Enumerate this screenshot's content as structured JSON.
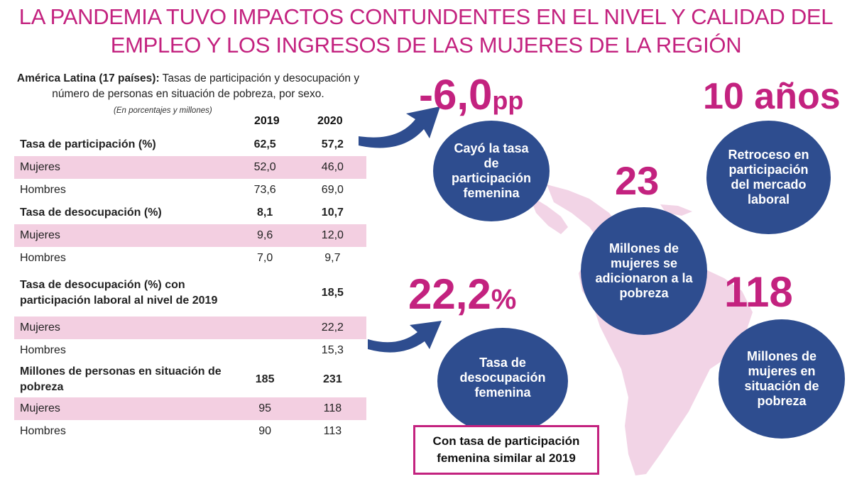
{
  "title": {
    "line1": "LA PANDEMIA TUVO IMPACTOS CONTUNDENTES EN EL NIVEL Y CALIDAD DEL",
    "line2": "EMPLEO Y LOS INGRESOS DE LAS MUJERES DE LA REGIÓN"
  },
  "table_caption": {
    "bold": "América Latina (17 países):",
    "rest": " Tasas de participación y desocupación y número de personas en situación de pobreza, por sexo.",
    "note": "(En porcentajes y millones)"
  },
  "columns": [
    "2019",
    "2020"
  ],
  "rows": [
    {
      "label": "Tasa de participación  (%)",
      "v2019": "62,5",
      "v2020": "57,2",
      "style": "bold"
    },
    {
      "label": "Mujeres",
      "v2019": "52,0",
      "v2020": "46,0",
      "style": "pink"
    },
    {
      "label": "Hombres",
      "v2019": "73,6",
      "v2020": "69,0",
      "style": ""
    },
    {
      "label": "Tasa de desocupación  (%)",
      "v2019": "8,1",
      "v2020": "10,7",
      "style": "bold"
    },
    {
      "label": "Mujeres",
      "v2019": "9,6",
      "v2020": "12,0",
      "style": "pink"
    },
    {
      "label": "Hombres",
      "v2019": "7,0",
      "v2020": "9,7",
      "style": ""
    },
    {
      "label": "Tasa de desocupación  (%) con participación  laboral al nivel de 2019",
      "v2019": "",
      "v2020": "18,5",
      "style": "bold tall"
    },
    {
      "label": "Mujeres",
      "v2019": "",
      "v2020": "22,2",
      "style": "pink"
    },
    {
      "label": "Hombres",
      "v2019": "",
      "v2020": "15,3",
      "style": ""
    },
    {
      "label": "Millones de personas  en situación de pobreza",
      "v2019": "185",
      "v2020": "231",
      "style": "bold tall"
    },
    {
      "label": "Mujeres",
      "v2019": "95",
      "v2020": "118",
      "style": "pink"
    },
    {
      "label": "Hombres",
      "v2019": "90",
      "v2020": "113",
      "style": ""
    }
  ],
  "stats": {
    "participacion": {
      "value": "-6,0",
      "unit": "pp",
      "text": "Cayó la tasa de participación femenina"
    },
    "anios": {
      "value": "10 años",
      "text": "Retroceso en participación del mercado laboral"
    },
    "pobreza_nuevas": {
      "value": "23",
      "text": "Millones de mujeres se adicionaron a la pobreza"
    },
    "desocupacion": {
      "value": "22,2",
      "unit": "%",
      "text": "Tasa de desocupación femenina"
    },
    "pobreza_total": {
      "value": "118",
      "text": "Millones de mujeres en situación de pobreza"
    }
  },
  "callout": "Con tasa de participación femenina similar al 2019",
  "colors": {
    "accent": "#c3227f",
    "circle": "#2e4d8f",
    "row_highlight": "#f3cfe1",
    "map": "#f2d4e6"
  }
}
